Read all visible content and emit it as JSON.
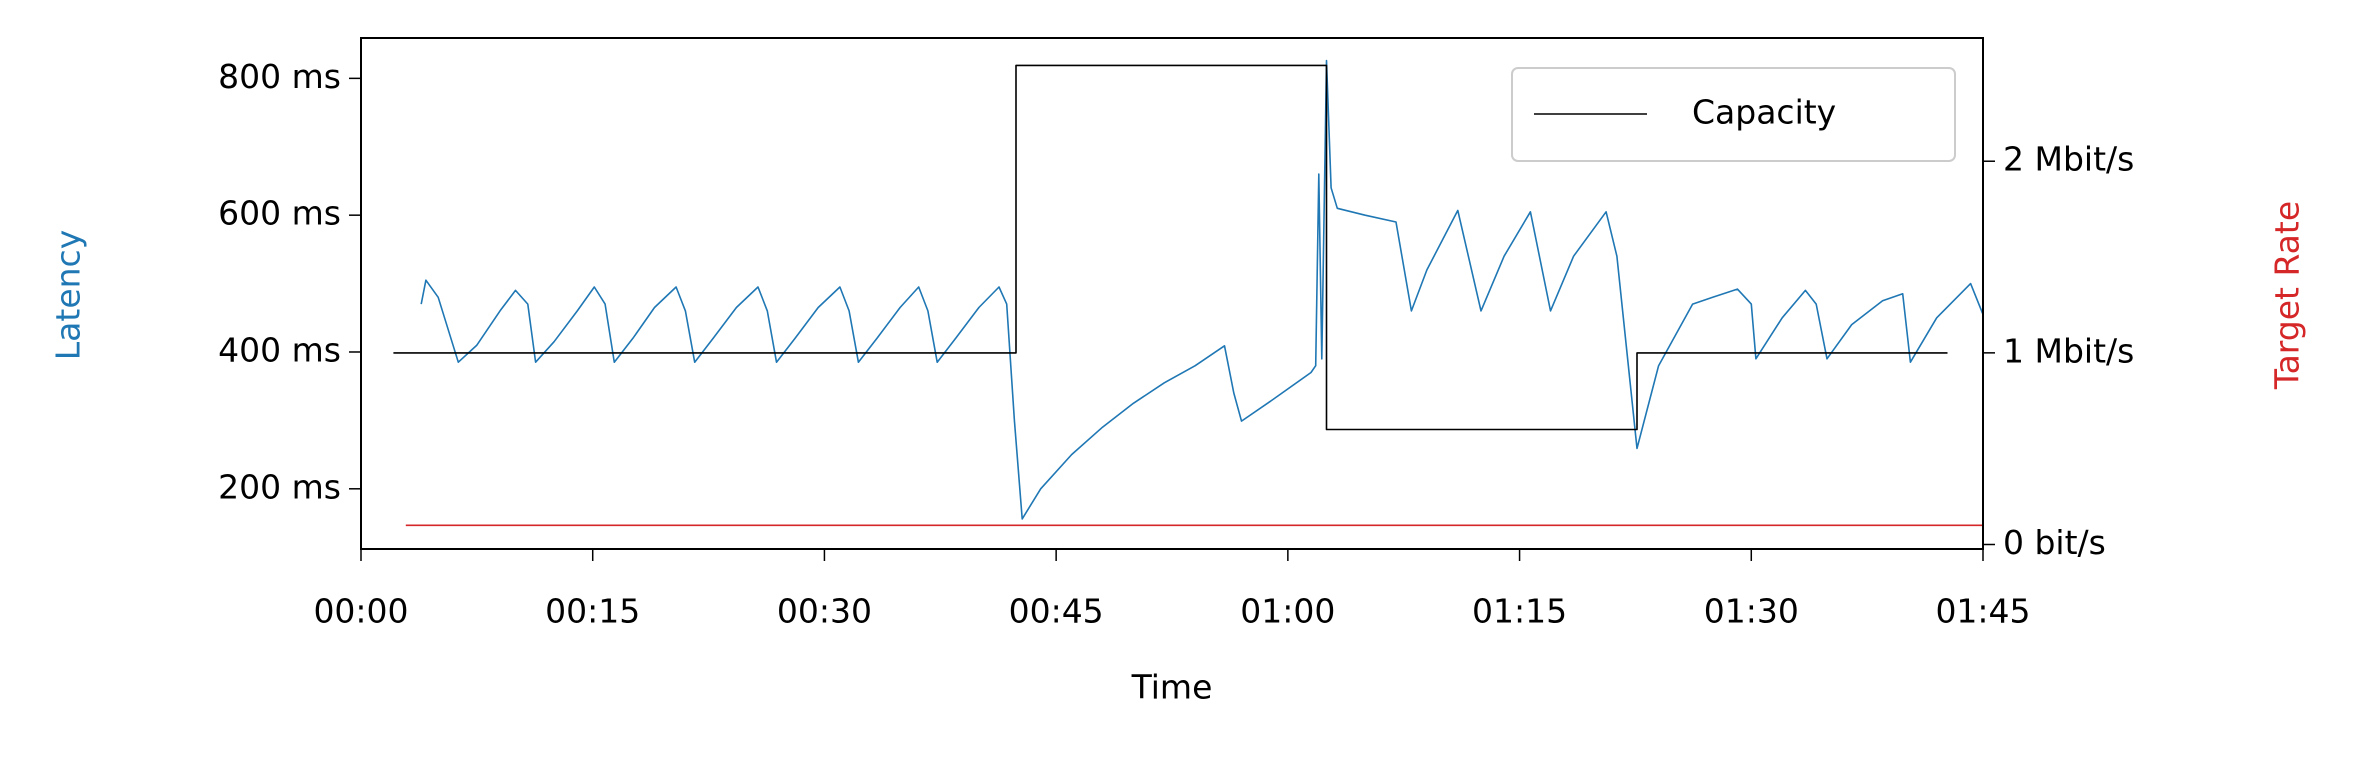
{
  "chart_data": {
    "type": "line",
    "xlabel": "Time",
    "ylabel": "Latency",
    "ylabel_color": "#1f77b4",
    "y2label": "Target Rate",
    "y2label_color": "#d62728",
    "legend": "upper right",
    "xlim": [
      0,
      105
    ],
    "xticks": [
      {
        "value": 0,
        "label": "00:00"
      },
      {
        "value": 15,
        "label": "00:15"
      },
      {
        "value": 30,
        "label": "00:30"
      },
      {
        "value": 45,
        "label": "00:45"
      },
      {
        "value": 60,
        "label": "01:00"
      },
      {
        "value": 75,
        "label": "01:15"
      },
      {
        "value": 90,
        "label": "01:30"
      },
      {
        "value": 105,
        "label": "01:45"
      }
    ],
    "ylim": [
      112,
      859
    ],
    "yticks": [
      {
        "value": 200,
        "label": "200 ms"
      },
      {
        "value": 400,
        "label": "400 ms"
      },
      {
        "value": 600,
        "label": "600 ms"
      },
      {
        "value": 800,
        "label": "800 ms"
      }
    ],
    "y2lim": [
      -23500,
      2643000
    ],
    "y2ticks": [
      {
        "value": 0,
        "label": "0 bit/s"
      },
      {
        "value": 1000000,
        "label": "1 Mbit/s"
      },
      {
        "value": 2000000,
        "label": "2 Mbit/s"
      }
    ],
    "series": [
      {
        "color": "#1f77b4",
        "axis": "y",
        "x": [
          3.9,
          4.2,
          5.0,
          6.3,
          7.5,
          9.0,
          10.0,
          10.8,
          11.3,
          12.5,
          14.0,
          15.1,
          15.8,
          16.4,
          17.6,
          19.0,
          20.4,
          21.0,
          21.6,
          22.8,
          24.3,
          25.7,
          26.3,
          26.9,
          28.1,
          29.6,
          31.0,
          31.6,
          32.2,
          33.4,
          34.9,
          36.1,
          36.7,
          37.3,
          38.5,
          40.0,
          41.3,
          41.8,
          42.3,
          42.8,
          44,
          46,
          48,
          50,
          52,
          54,
          55.9,
          56.5,
          57,
          59,
          61.5,
          61.8,
          62,
          62.2,
          62.5,
          62.8,
          63.2,
          65,
          67,
          68,
          69,
          71,
          72.5,
          74,
          75.7,
          77,
          78.5,
          80.6,
          81.3,
          82.6,
          84,
          86.2,
          87.5,
          89.1,
          90,
          90.3,
          92,
          93.5,
          94.2,
          94.9,
          96.5,
          98.5,
          99.8,
          100.3,
          102,
          104.2,
          105
        ],
        "values": [
          470,
          505,
          480,
          385,
          410,
          460,
          490,
          470,
          385,
          415,
          460,
          495,
          470,
          385,
          420,
          465,
          495,
          460,
          385,
          420,
          465,
          495,
          460,
          385,
          420,
          465,
          495,
          460,
          385,
          420,
          465,
          495,
          460,
          385,
          420,
          465,
          495,
          470,
          300,
          156,
          200,
          250,
          290,
          325,
          355,
          380,
          409,
          340,
          299,
          330,
          370,
          380,
          660,
          390,
          826,
          640,
          610,
          600,
          590,
          460,
          520,
          607,
          460,
          540,
          605,
          460,
          540,
          605,
          540,
          259,
          380,
          470,
          480,
          492,
          470,
          390,
          450,
          490,
          470,
          390,
          440,
          475,
          485,
          385,
          450,
          500,
          455
        ]
      },
      {
        "name": "Capacity",
        "color": "#000000",
        "axis": "y2",
        "x": [
          2.1,
          42.4,
          42.4,
          62.5,
          62.5,
          82.6,
          82.6,
          102.7
        ],
        "values": [
          1000000,
          1000000,
          2500000,
          2500000,
          600000,
          600000,
          1000000,
          1000000
        ]
      },
      {
        "color": "#d62728",
        "axis": "y2",
        "x": [
          2.9,
          105
        ],
        "values": [
          100000,
          100000
        ]
      }
    ]
  }
}
